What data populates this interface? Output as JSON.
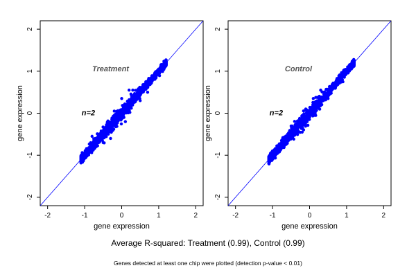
{
  "chart_data": [
    {
      "type": "scatter",
      "panel_label": "Treatment",
      "annotation": "n=2",
      "xlabel": "gene expression",
      "ylabel": "gene expression",
      "xlim": [
        -2.2,
        2.2
      ],
      "ylim": [
        -2.2,
        2.2
      ],
      "x_ticks": [
        -2,
        -1,
        0,
        1,
        2
      ],
      "y_ticks": [
        -2,
        -1,
        0,
        1,
        2
      ],
      "reference_line": "y = x",
      "point_color": "#0000ff",
      "line_color": "#0000ff",
      "point_range": [
        -1.1,
        1.2
      ],
      "series": [
        {
          "points": [
            [
              -1.1,
              -1.08
            ],
            [
              -1.0,
              -0.95
            ],
            [
              -0.9,
              -0.88
            ],
            [
              -0.8,
              -0.78
            ],
            [
              -0.7,
              -0.62
            ],
            [
              -0.6,
              -0.6
            ],
            [
              -0.5,
              -0.45
            ],
            [
              -0.4,
              -0.4
            ],
            [
              -0.3,
              -0.25
            ],
            [
              -0.2,
              -0.22
            ],
            [
              -0.1,
              -0.05
            ],
            [
              0.0,
              0.0
            ],
            [
              0.1,
              0.12
            ],
            [
              0.2,
              0.18
            ],
            [
              0.3,
              0.33
            ],
            [
              0.4,
              0.38
            ],
            [
              0.5,
              0.52
            ],
            [
              0.6,
              0.6
            ],
            [
              0.7,
              0.72
            ],
            [
              0.8,
              0.78
            ],
            [
              0.9,
              0.92
            ],
            [
              1.0,
              1.0
            ],
            [
              1.1,
              1.1
            ],
            [
              1.2,
              1.18
            ],
            [
              -0.5,
              -0.7
            ],
            [
              -0.2,
              0.05
            ],
            [
              0.0,
              0.35
            ],
            [
              0.3,
              0.55
            ],
            [
              0.5,
              0.3
            ],
            [
              0.7,
              0.5
            ],
            [
              -0.8,
              -0.55
            ],
            [
              -0.3,
              -0.6
            ],
            [
              0.1,
              -0.2
            ],
            [
              0.2,
              0.55
            ]
          ]
        }
      ]
    },
    {
      "type": "scatter",
      "panel_label": "Control",
      "annotation": "n=2",
      "xlabel": "gene expression",
      "ylabel": "gene expression",
      "xlim": [
        -2.2,
        2.2
      ],
      "ylim": [
        -2.2,
        2.2
      ],
      "x_ticks": [
        -2,
        -1,
        0,
        1,
        2
      ],
      "y_ticks": [
        -2,
        -1,
        0,
        1,
        2
      ],
      "reference_line": "y = x",
      "point_color": "#0000ff",
      "line_color": "#0000ff",
      "point_range": [
        -1.1,
        1.2
      ],
      "series": [
        {
          "points": [
            [
              -1.1,
              -1.08
            ],
            [
              -1.0,
              -0.98
            ],
            [
              -0.9,
              -0.85
            ],
            [
              -0.8,
              -0.8
            ],
            [
              -0.7,
              -0.65
            ],
            [
              -0.6,
              -0.58
            ],
            [
              -0.5,
              -0.48
            ],
            [
              -0.4,
              -0.38
            ],
            [
              -0.3,
              -0.28
            ],
            [
              -0.2,
              -0.18
            ],
            [
              -0.1,
              -0.08
            ],
            [
              0.0,
              0.02
            ],
            [
              0.1,
              0.1
            ],
            [
              0.2,
              0.2
            ],
            [
              0.3,
              0.3
            ],
            [
              0.4,
              0.42
            ],
            [
              0.5,
              0.5
            ],
            [
              0.6,
              0.62
            ],
            [
              0.7,
              0.7
            ],
            [
              0.8,
              0.82
            ],
            [
              0.9,
              0.9
            ],
            [
              1.0,
              1.0
            ],
            [
              1.1,
              1.08
            ],
            [
              1.2,
              1.16
            ],
            [
              0.3,
              0.55
            ],
            [
              0.5,
              0.35
            ],
            [
              0.1,
              0.35
            ],
            [
              -0.2,
              -0.45
            ]
          ]
        }
      ]
    }
  ],
  "captions": {
    "main": "Average R-squared: Treatment (0.99), Control (0.99)",
    "foot": "Genes detected at least one chip were plotted (detection p-value < 0.01)"
  }
}
